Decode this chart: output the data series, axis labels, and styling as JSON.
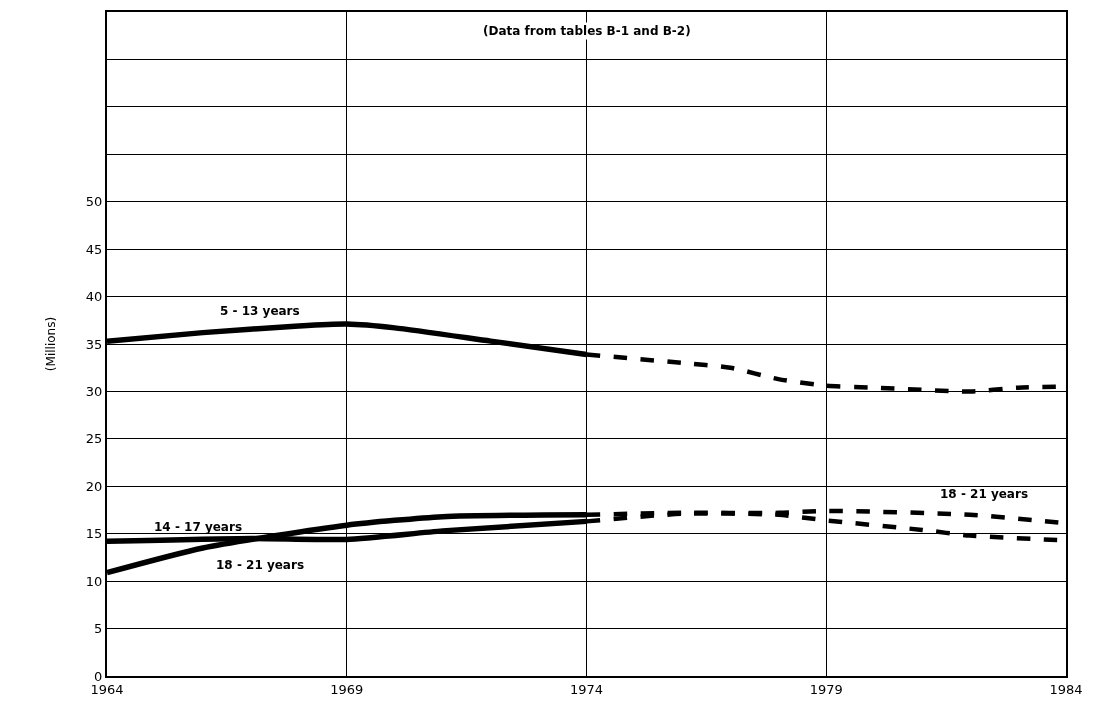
{
  "chart_data": {
    "type": "line",
    "ylabel": "(Millions)",
    "xlim": [
      1964,
      1984
    ],
    "xticks": [
      1964,
      1969,
      1974,
      1979,
      1984
    ],
    "ylim": [
      0,
      70
    ],
    "yticks": [
      0,
      5,
      10,
      15,
      20,
      25,
      30,
      35,
      40,
      45,
      50,
      {
        "value": 55,
        "label": null
      },
      {
        "value": 60,
        "label": null
      },
      {
        "value": 65,
        "label": null
      },
      {
        "value": 70,
        "label": null
      }
    ],
    "grid": true,
    "legend": false,
    "marker": "none",
    "series": [
      {
        "name": "5 - 13 years",
        "color": "#000000",
        "line_style": "solid",
        "x": [
          1964,
          1966,
          1968,
          1969,
          1970,
          1972,
          1974
        ],
        "values": [
          35.3,
          36.2,
          36.9,
          37.1,
          36.7,
          35.3,
          33.9
        ]
      },
      {
        "color": "#000000",
        "line_style": "dashed",
        "x": [
          1974,
          1976,
          1977,
          1978,
          1979,
          1980,
          1982,
          1983,
          1984
        ],
        "values": [
          33.9,
          33.0,
          32.5,
          31.3,
          30.6,
          30.4,
          30.0,
          30.4,
          30.5
        ]
      },
      {
        "name": "14 - 17 years",
        "color": "#000000",
        "line_style": "solid",
        "x": [
          1964,
          1967,
          1969,
          1971,
          1974
        ],
        "values": [
          14.2,
          14.5,
          14.4,
          15.3,
          16.3
        ]
      },
      {
        "color": "#000000",
        "line_style": "dashed",
        "x": [
          1974,
          1976,
          1978,
          1979,
          1981,
          1982,
          1984
        ],
        "values": [
          16.3,
          17.1,
          17.0,
          16.4,
          15.4,
          14.8,
          14.3
        ]
      },
      {
        "name": "18 - 21 years",
        "color": "#000000",
        "line_style": "solid",
        "x": [
          1964,
          1966,
          1969,
          1971,
          1974
        ],
        "values": [
          10.9,
          13.5,
          15.9,
          16.8,
          17.0
        ]
      },
      {
        "name": "18 - 21 years",
        "color": "#000000",
        "line_style": "dashed",
        "x": [
          1974,
          1976,
          1978,
          1979,
          1982,
          1984
        ],
        "values": [
          17.0,
          17.2,
          17.2,
          17.4,
          17.0,
          16.1
        ]
      }
    ],
    "annotations": [
      "(Data from tables B-1 and B-2)"
    ]
  }
}
